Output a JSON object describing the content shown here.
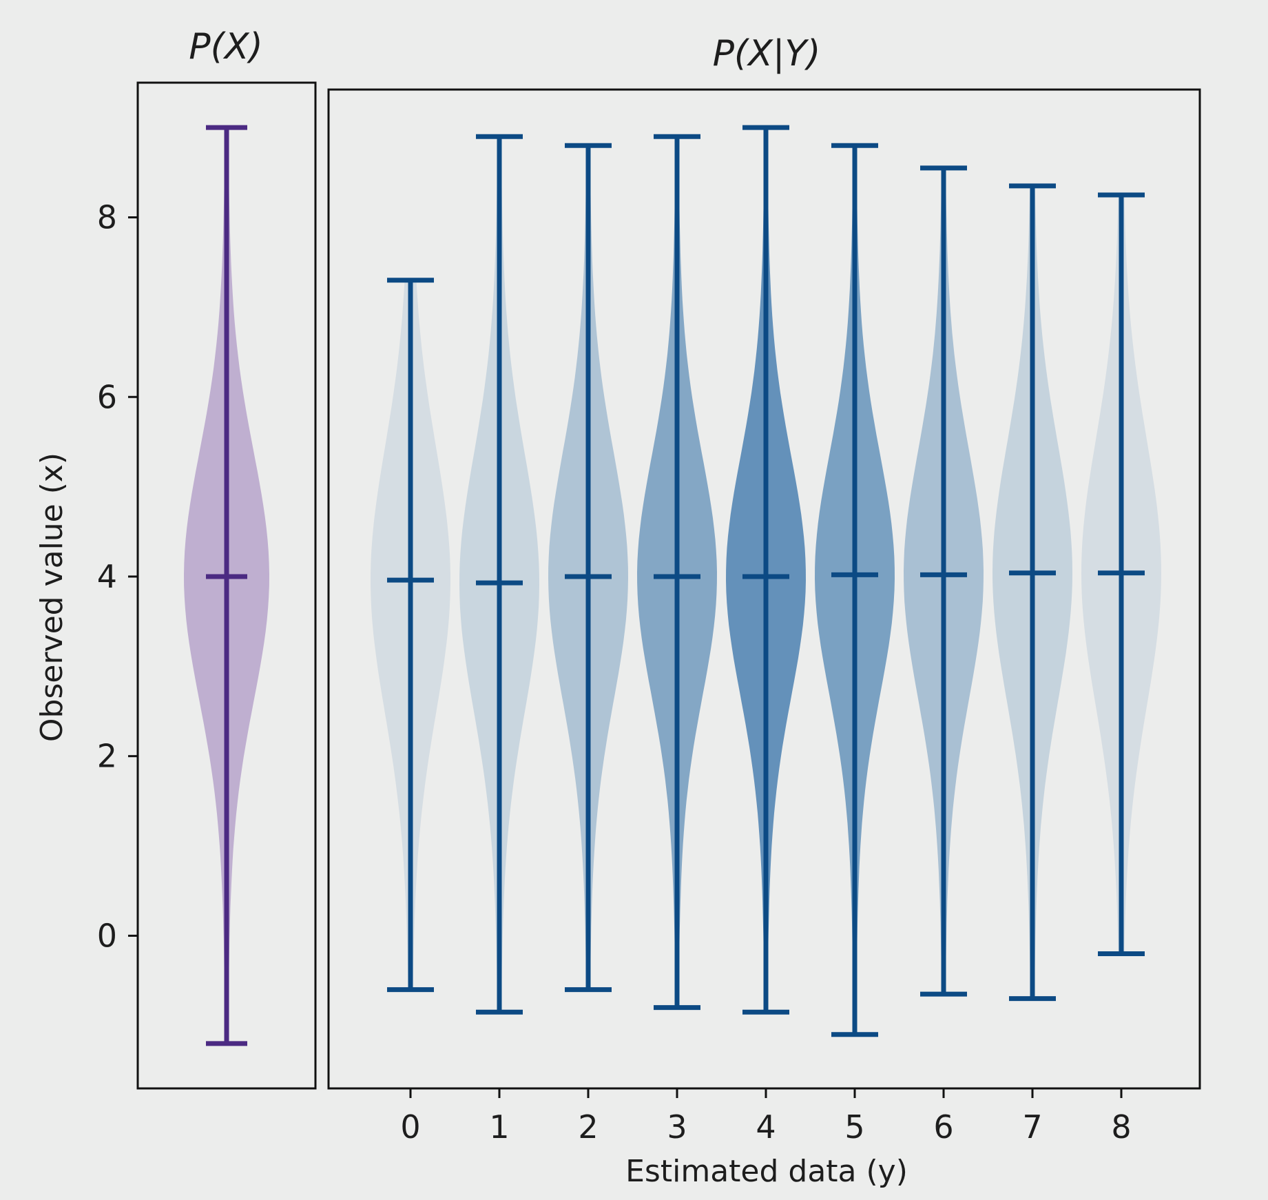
{
  "colors": {
    "marginal_fill": "#8a63b0",
    "marginal_line": "#4b2a82",
    "conditional_fill": "#2f6ea6",
    "conditional_line": "#0c4a84",
    "axes": "#111111",
    "background": "#ecedec"
  },
  "chart_data": [
    {
      "type": "violin",
      "title": "P(X)",
      "ylabel": "Observed value (x)",
      "xlabel": "",
      "ylim": [
        -1.7,
        9.5
      ],
      "yticks": [
        0,
        2,
        4,
        6,
        8
      ],
      "ytick_labels": [
        "0",
        "2",
        "4",
        "6",
        "8"
      ],
      "violins": [
        {
          "median": 4.0,
          "min": -1.2,
          "max": 9.0,
          "density_peak": 0.45,
          "density_spread": 1.35,
          "opacity": 0.45
        }
      ]
    },
    {
      "type": "violin",
      "title": "P(X|Y)",
      "xlabel": "Estimated data (y)",
      "ylabel": "",
      "ylim": [
        -1.7,
        9.5
      ],
      "categories": [
        "0",
        "1",
        "2",
        "3",
        "4",
        "5",
        "6",
        "7",
        "8"
      ],
      "violins": [
        {
          "category": "0",
          "median": 3.96,
          "min": -0.6,
          "max": 7.3,
          "density_peak": 0.45,
          "density_spread": 1.45,
          "opacity": 0.12
        },
        {
          "category": "1",
          "median": 3.93,
          "min": -0.85,
          "max": 8.9,
          "density_peak": 0.45,
          "density_spread": 1.4,
          "opacity": 0.18
        },
        {
          "category": "2",
          "median": 4.0,
          "min": -0.6,
          "max": 8.8,
          "density_peak": 0.45,
          "density_spread": 1.35,
          "opacity": 0.32
        },
        {
          "category": "3",
          "median": 4.0,
          "min": -0.8,
          "max": 8.9,
          "density_peak": 0.45,
          "density_spread": 1.3,
          "opacity": 0.55
        },
        {
          "category": "4",
          "median": 4.0,
          "min": -0.85,
          "max": 9.0,
          "density_peak": 0.45,
          "density_spread": 1.3,
          "opacity": 0.72
        },
        {
          "category": "5",
          "median": 4.02,
          "min": -1.1,
          "max": 8.8,
          "density_peak": 0.45,
          "density_spread": 1.3,
          "opacity": 0.6
        },
        {
          "category": "6",
          "median": 4.02,
          "min": -0.65,
          "max": 8.55,
          "density_peak": 0.45,
          "density_spread": 1.35,
          "opacity": 0.35
        },
        {
          "category": "7",
          "median": 4.04,
          "min": -0.7,
          "max": 8.35,
          "density_peak": 0.45,
          "density_spread": 1.4,
          "opacity": 0.2
        },
        {
          "category": "8",
          "median": 4.04,
          "min": -0.2,
          "max": 8.25,
          "density_peak": 0.45,
          "density_spread": 1.45,
          "opacity": 0.12
        }
      ]
    }
  ]
}
